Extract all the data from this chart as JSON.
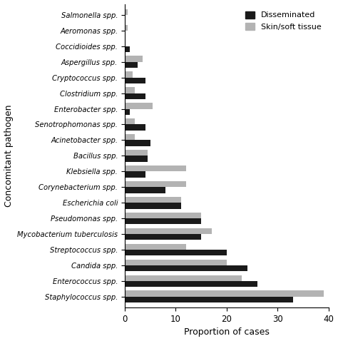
{
  "categories": [
    "Staphylococcus spp.",
    "Enterococcus spp.",
    "Candida spp.",
    "Streptococcus spp.",
    "Mycobacterium tuberculosis",
    "Pseudomonas spp.",
    "Escherichia coli",
    "Corynebacterium spp.",
    "Klebsiella spp.",
    "Bacillus spp.",
    "Acinetobacter spp.",
    "Senotrophomonas spp.",
    "Enterobacter spp.",
    "Clostridium spp.",
    "Cryptococcus spp.",
    "Aspergillus spp.",
    "Coccidioides spp.",
    "Aeromonas spp.",
    "Salmonella spp."
  ],
  "disseminated": [
    33.0,
    26.0,
    24.0,
    20.0,
    15.0,
    15.0,
    11.0,
    8.0,
    4.0,
    4.5,
    5.0,
    4.0,
    1.0,
    4.0,
    4.0,
    2.5,
    1.0,
    0.0,
    0.0
  ],
  "skin_soft_tissue": [
    39.0,
    23.0,
    20.0,
    12.0,
    17.0,
    15.0,
    11.0,
    12.0,
    12.0,
    4.5,
    2.0,
    2.0,
    5.5,
    2.0,
    1.5,
    3.5,
    0.0,
    0.5,
    0.5
  ],
  "disseminated_color": "#1a1a1a",
  "skin_color": "#b3b3b3",
  "xlabel": "Proportion of cases",
  "ylabel": "Concomitant pathogen",
  "xlim": [
    0,
    40
  ],
  "xticks": [
    0,
    10,
    20,
    30,
    40
  ],
  "bar_height": 0.38,
  "figsize": [
    4.74,
    4.78
  ],
  "dpi": 100
}
